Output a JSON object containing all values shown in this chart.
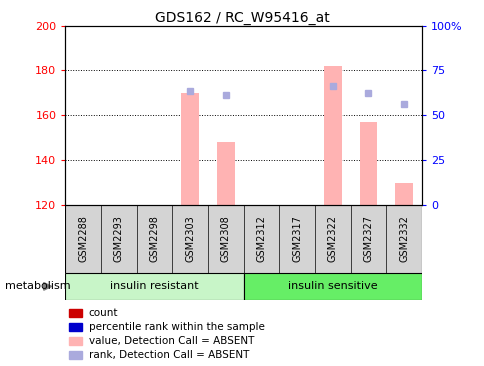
{
  "title": "GDS162 / RC_W95416_at",
  "samples": [
    "GSM2288",
    "GSM2293",
    "GSM2298",
    "GSM2303",
    "GSM2308",
    "GSM2312",
    "GSM2317",
    "GSM2322",
    "GSM2327",
    "GSM2332"
  ],
  "bar_values": [
    null,
    null,
    null,
    170,
    148,
    null,
    null,
    182,
    157,
    130
  ],
  "rank_dots": [
    null,
    null,
    null,
    171,
    169,
    null,
    null,
    173,
    170,
    165
  ],
  "ylim_left": [
    120,
    200
  ],
  "ylim_right": [
    0,
    100
  ],
  "yticks_left": [
    120,
    140,
    160,
    180,
    200
  ],
  "yticks_right": [
    0,
    25,
    50,
    75,
    100
  ],
  "yticklabels_right": [
    "0",
    "25",
    "50",
    "75",
    "100%"
  ],
  "group1_label": "insulin resistant",
  "group2_label": "insulin sensitive",
  "group1_color": "#c8f5c8",
  "group2_color": "#66ee66",
  "group_label": "metabolism",
  "bar_color": "#ffb3b3",
  "rank_dot_color": "#aaaadd",
  "legend_items": [
    {
      "color": "#cc0000",
      "label": "count"
    },
    {
      "color": "#0000cc",
      "label": "percentile rank within the sample"
    },
    {
      "color": "#ffb3b3",
      "label": "value, Detection Call = ABSENT"
    },
    {
      "color": "#aaaadd",
      "label": "rank, Detection Call = ABSENT"
    }
  ],
  "background_color": "#ffffff",
  "plot_bg_color": "#ffffff",
  "grid_color": "#000000",
  "title_fontsize": 10,
  "tick_label_fontsize": 7,
  "n_samples": 10,
  "sample_box_color": "#d4d4d4",
  "sample_box_edge": "#999999"
}
